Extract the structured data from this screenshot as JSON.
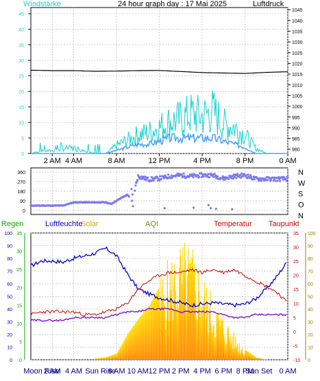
{
  "colors": {
    "wind_avg": "#4aa3ff",
    "wind_gust": "#19d0d0",
    "pressure": "#000000",
    "direction": "#7b7bf0",
    "humidity": "#0000cc",
    "temperature": "#cc0000",
    "dewpoint": "#7a00cc",
    "solar_hi": "#ffe000",
    "solar_lo": "#ff8800",
    "rain": "#00aa00",
    "axis": "#000000"
  },
  "chart_data": [
    {
      "type": "line",
      "title": "24 hour graph day : 17 Mai 2025",
      "left_label": "Windstärke",
      "right_label": "Luftdruck",
      "x_ticks": [
        "2 AM",
        "4 AM",
        "8 AM",
        "12 PM",
        "4 PM",
        "8 PM",
        "0 AM"
      ],
      "x_hours": [
        2,
        4,
        8,
        12,
        16,
        20,
        24
      ],
      "y_left_ticks": [
        "0",
        "5",
        "10",
        "15",
        "20",
        "25",
        "30",
        "35",
        "40",
        "45"
      ],
      "y_left_range": [
        0,
        47
      ],
      "y_right_ticks": [
        "980",
        "985",
        "990",
        "995",
        "1000",
        "1005",
        "1010",
        "1015",
        "1020",
        "1025",
        "1030",
        "1035",
        "1040",
        "1045"
      ],
      "y_right_range": [
        978,
        1046
      ],
      "series": [
        {
          "name": "Luftdruck",
          "axis": "right",
          "x": [
            0,
            2,
            4,
            6,
            8,
            10,
            12,
            14,
            16,
            18,
            20,
            22,
            24
          ],
          "values": [
            1016.8,
            1016.6,
            1016.6,
            1016.3,
            1016.4,
            1016.6,
            1016.7,
            1016.2,
            1015.7,
            1015.5,
            1015.3,
            1015.8,
            1016.1
          ]
        },
        {
          "name": "Böen",
          "axis": "left",
          "x": [
            0,
            1,
            2,
            3,
            4,
            5,
            6,
            7,
            8,
            9,
            10,
            11,
            12,
            13,
            14,
            15,
            16,
            17,
            18,
            19,
            20,
            21,
            22,
            23,
            24
          ],
          "values": [
            0,
            1,
            1,
            2,
            2,
            1,
            0,
            0,
            3,
            5,
            7,
            8,
            10,
            12,
            13,
            15,
            14,
            16,
            11,
            10,
            7,
            2,
            0,
            0,
            0
          ]
        },
        {
          "name": "Windstärke",
          "axis": "left",
          "x": [
            0,
            1,
            2,
            3,
            4,
            5,
            6,
            7,
            8,
            9,
            10,
            11,
            12,
            13,
            14,
            15,
            16,
            17,
            18,
            19,
            20,
            21,
            22,
            23,
            24
          ],
          "values": [
            0,
            0,
            0,
            0,
            0,
            0,
            0,
            0,
            1,
            2,
            3,
            3,
            4,
            5,
            5,
            5,
            5,
            5,
            4,
            3,
            2,
            0,
            0,
            0,
            0
          ]
        }
      ]
    },
    {
      "type": "scatter",
      "right_labels": [
        "N",
        "W",
        "S",
        "O",
        "N"
      ],
      "y_ticks": [
        "360",
        "270",
        "180",
        "90",
        "0"
      ],
      "y_range": [
        0,
        360
      ],
      "series": [
        {
          "name": "Windrichtung",
          "x": [
            0,
            1,
            2,
            3,
            4,
            5,
            6,
            7,
            7.5,
            8,
            8.5,
            9,
            9.5,
            10,
            11,
            12,
            13,
            14,
            15,
            16,
            17,
            18,
            19,
            20,
            21,
            22,
            23,
            24
          ],
          "values": [
            45,
            45,
            45,
            45,
            75,
            75,
            75,
            75,
            60,
            90,
            120,
            145,
            100,
            320,
            290,
            300,
            320,
            330,
            320,
            330,
            330,
            300,
            320,
            330,
            295,
            295,
            295,
            295
          ]
        }
      ]
    },
    {
      "type": "line",
      "legend": [
        "Regen",
        "Luftfeuchte",
        "Solar",
        "AQI",
        "Temperatur",
        "Taupunkt"
      ],
      "y_left1_ticks": [
        "0",
        "10",
        "20",
        "30",
        "40",
        "50",
        "60",
        "70",
        "80",
        "90",
        "100"
      ],
      "y_left1_range": [
        0,
        100
      ],
      "y_left2_ticks": [
        "0",
        "5",
        "10",
        "15",
        "20",
        "25",
        "30",
        "35"
      ],
      "y_left2_range": [
        0,
        35
      ],
      "y_right1_ticks": [
        "-10",
        "-5",
        "0",
        "5",
        "10",
        "15",
        "20",
        "25",
        "30",
        "35"
      ],
      "y_right1_range": [
        -10,
        35
      ],
      "y_right2_ticks": [
        "0",
        "10",
        "20",
        "30",
        "40",
        "50",
        "60",
        "70",
        "80",
        "90",
        "100"
      ],
      "y_right2_range": [
        0,
        100
      ],
      "x_labels": [
        "Moon Rise",
        "2 AM",
        "4 AM",
        "Sun Rise",
        "8 AM",
        "10 AM",
        "12 PM",
        "2 PM",
        "4 PM",
        "6 PM",
        "8 PM",
        "Sun Set",
        "0 AM"
      ],
      "x_label_hours": [
        1,
        2,
        4,
        6.5,
        8,
        10,
        12,
        14,
        16,
        18,
        20,
        21.3,
        24
      ],
      "series": [
        {
          "name": "Luftfeuchte",
          "axis": "left1",
          "x": [
            0,
            1,
            2,
            3,
            4,
            5,
            6,
            7,
            8,
            9,
            10,
            11,
            12,
            13,
            14,
            15,
            16,
            17,
            18,
            19,
            20,
            21,
            22,
            23,
            24
          ],
          "values": [
            74,
            78,
            78,
            77,
            80,
            82,
            84,
            88,
            82,
            68,
            56,
            52,
            49,
            47,
            45,
            43,
            44,
            45,
            44,
            43,
            44,
            48,
            56,
            66,
            78
          ]
        },
        {
          "name": "Temperatur",
          "axis": "right1",
          "x": [
            0,
            1,
            2,
            3,
            4,
            5,
            6,
            7,
            8,
            9,
            10,
            11,
            12,
            13,
            14,
            15,
            16,
            17,
            18,
            19,
            20,
            21,
            22,
            23,
            24
          ],
          "values": [
            6,
            7,
            7,
            7,
            7,
            6,
            6,
            7,
            8,
            10,
            15,
            18,
            20,
            21,
            21,
            22,
            21,
            22,
            21,
            22,
            20,
            18,
            16,
            14,
            10
          ]
        },
        {
          "name": "Taupunkt",
          "axis": "right1",
          "x": [
            0,
            1,
            2,
            3,
            4,
            5,
            6,
            7,
            8,
            9,
            10,
            11,
            12,
            13,
            14,
            15,
            16,
            17,
            18,
            19,
            20,
            21,
            22,
            23,
            24
          ],
          "values": [
            4,
            4,
            4,
            4,
            5,
            5,
            5,
            5,
            6,
            7,
            7,
            8,
            8,
            8,
            7,
            7,
            7,
            7,
            6,
            5,
            5,
            6,
            6,
            6,
            6
          ]
        },
        {
          "name": "Solar",
          "axis": "right2",
          "x": [
            0,
            5,
            6,
            7,
            8,
            9,
            10,
            11,
            12,
            13,
            14,
            15,
            16,
            17,
            18,
            19,
            20,
            21,
            22,
            24
          ],
          "values": [
            0,
            0,
            1,
            2,
            5,
            20,
            32,
            42,
            58,
            70,
            80,
            78,
            60,
            42,
            30,
            18,
            8,
            2,
            0,
            0
          ]
        }
      ]
    }
  ]
}
